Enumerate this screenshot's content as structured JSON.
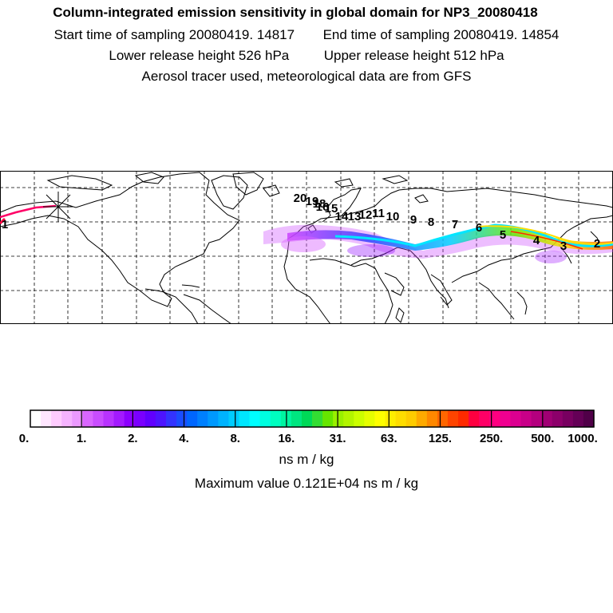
{
  "header": {
    "title": "Column-integrated emission sensitivity in global domain for NP3_20080418",
    "start_label": "Start time of sampling 20080419. 14817",
    "end_label": "End time of sampling 20080419. 14854",
    "lower_label": "Lower release height  526 hPa",
    "upper_label": "Upper release height  512 hPa",
    "tracer_label": "Aerosol tracer used, meteorological data are from GFS"
  },
  "map": {
    "day_labels": [
      "20",
      "19",
      "18",
      "16",
      "15",
      "14",
      "13",
      "12",
      "11",
      "10",
      "9",
      "8",
      "7",
      "6",
      "5",
      "4",
      "3",
      "2",
      "1"
    ],
    "release_marker": "release-point-star"
  },
  "colorbar": {
    "tick_labels": [
      "0.",
      "1.",
      "2.",
      "4.",
      "8.",
      "16.",
      "31.",
      "63.",
      "125.",
      "250.",
      "500.",
      "1000."
    ],
    "colors": [
      "#ffffff",
      "#ffe6ff",
      "#ffccff",
      "#f5b3ff",
      "#eb99ff",
      "#d966ff",
      "#c94dff",
      "#b833ff",
      "#a31aff",
      "#8c00ff",
      "#7a00ff",
      "#6100ff",
      "#4d14ff",
      "#3333ff",
      "#1a4dff",
      "#0066ff",
      "#0080ff",
      "#0099ff",
      "#00b3ff",
      "#00ccff",
      "#00e6ff",
      "#00ffff",
      "#00ffe0",
      "#00ffc0",
      "#00f5a0",
      "#00e680",
      "#00d957",
      "#33dd33",
      "#66e600",
      "#99f000",
      "#b3f500",
      "#ccff00",
      "#e6ff00",
      "#ffff00",
      "#ffee00",
      "#ffdd00",
      "#ffcc00",
      "#ffaa00",
      "#ff8800",
      "#ff6600",
      "#ff4400",
      "#ff2a00",
      "#ff0040",
      "#ff0066",
      "#ff0080",
      "#f00090",
      "#dc0090",
      "#c80088",
      "#b4007e",
      "#a00074",
      "#8c006a",
      "#780060",
      "#640056",
      "#500048"
    ]
  },
  "unit": "ns m / kg",
  "max_value": "Maximum value  0.121E+04 ns m / kg"
}
